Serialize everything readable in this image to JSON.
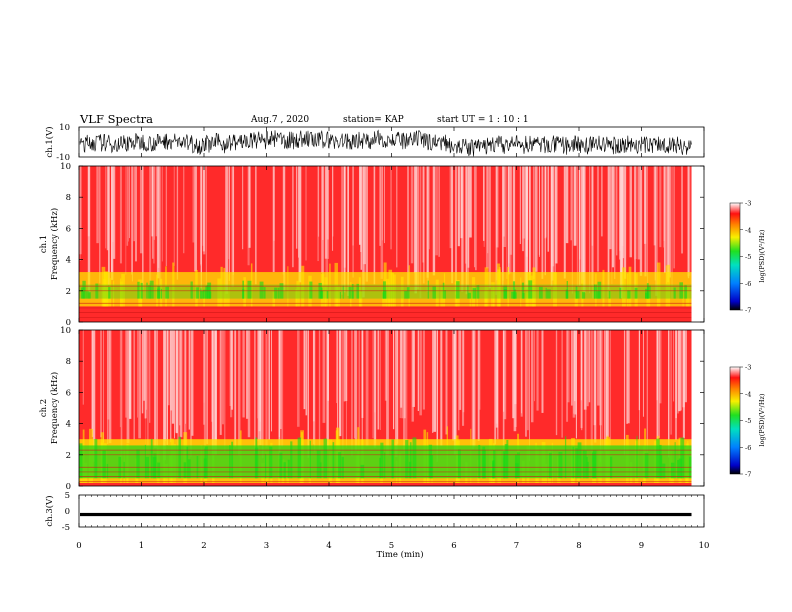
{
  "header": {
    "title": "VLF Spectra",
    "date": "Aug.7  , 2020",
    "station": "station= KAP",
    "start": "start  UT  =    1  : 10 : 1"
  },
  "colors": {
    "low_band": "#18d818",
    "mid_band": "#ffe600",
    "background": "#ff2a2a",
    "light": "#ffd6d6",
    "trace": "#000000"
  },
  "chart_data": [
    {
      "type": "line",
      "panel": "ch1-waveform",
      "ylabel": "ch.1(V)",
      "ylim": [
        -10,
        10
      ],
      "yticks": [
        "10",
        "-10"
      ],
      "xlim": [
        0,
        10
      ]
    },
    {
      "type": "heatmap",
      "panel": "ch1-spectrogram",
      "ylabel_line1": "ch.1",
      "ylabel_line2": "Frequency  (kHz)",
      "ylim": [
        0,
        10
      ],
      "yticks": [
        "0",
        "2",
        "4",
        "6",
        "8",
        "10"
      ],
      "xlim": [
        0,
        10
      ],
      "data_end_min": 9.8,
      "colorbar": {
        "label": "log(PSD)(V²/Hz)",
        "range": [
          -7,
          -3
        ],
        "ticks": [
          "-3",
          "-4",
          "-5",
          "-6",
          "-7"
        ]
      }
    },
    {
      "type": "heatmap",
      "panel": "ch2-spectrogram",
      "ylabel_line1": "ch.2",
      "ylabel_line2": "Frequency  (kHz)",
      "ylim": [
        0,
        10
      ],
      "yticks": [
        "0",
        "2",
        "4",
        "6",
        "8",
        "10"
      ],
      "xlim": [
        0,
        10
      ],
      "data_end_min": 9.8,
      "colorbar": {
        "label": "log(PSD)(V²/Hz)",
        "range": [
          -7,
          -3
        ],
        "ticks": [
          "-3",
          "-4",
          "-5",
          "-6",
          "-7"
        ]
      }
    },
    {
      "type": "line",
      "panel": "ch3-waveform",
      "ylabel": "ch.3(V)",
      "ylim": [
        -5,
        5
      ],
      "yticks": [
        "5",
        "0",
        "-5"
      ],
      "xlim": [
        0,
        10
      ],
      "values_approx": "constant near -1"
    }
  ],
  "xaxis": {
    "label": "Time  (min)",
    "ticks": [
      "0",
      "1",
      "2",
      "3",
      "4",
      "5",
      "6",
      "7",
      "8",
      "9",
      "10"
    ]
  }
}
